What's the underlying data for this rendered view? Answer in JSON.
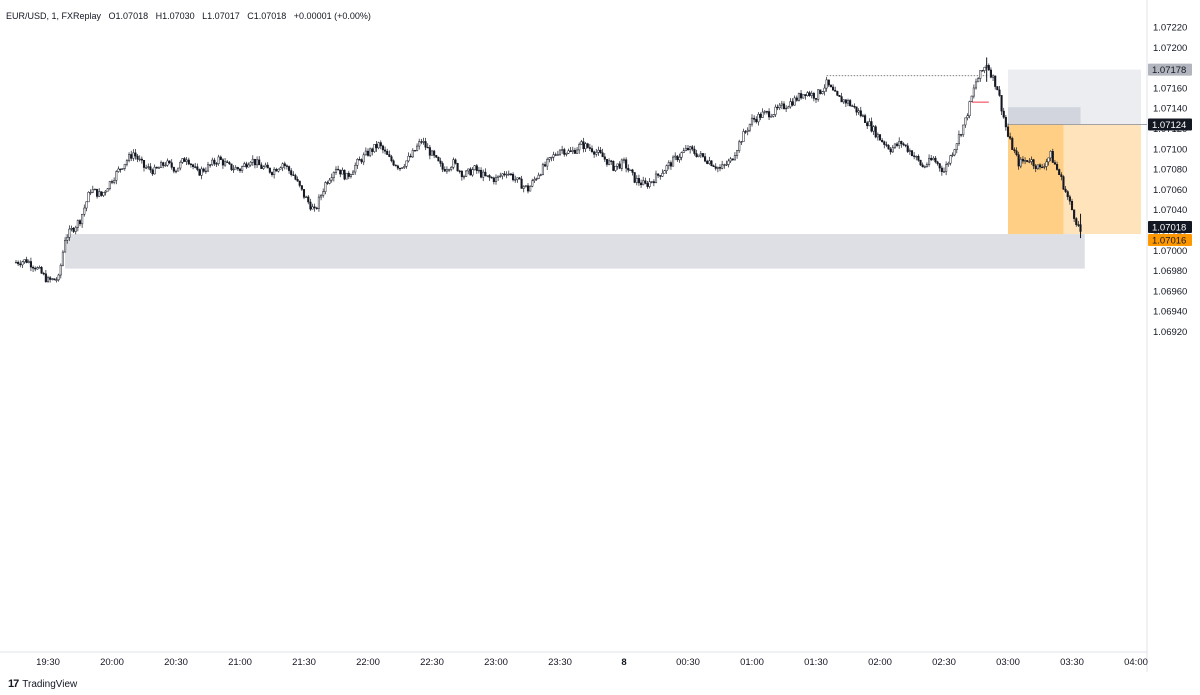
{
  "legend": {
    "symbol": "EUR/USD, 1, FXReplay",
    "open": "O1.07018",
    "high": "H1.07030",
    "low": "L1.07017",
    "close": "C1.07018",
    "change": "+0.00001 (+0.00%)"
  },
  "brand": {
    "text": "TradingView",
    "logo": "tradingview-logo-icon"
  },
  "colors": {
    "candle": "#131722",
    "gray_zone": "#d1d4dc",
    "light_zone": "#e9eaee",
    "orange_dark": "#ffcc80",
    "orange_light": "#ffe0b2",
    "orange_tag": "#ff9800",
    "gray_tag": "#b2b5be",
    "black_tag": "#131722",
    "red_mark": "#f23645"
  },
  "chart_data": {
    "type": "candlestick",
    "title": "",
    "ylim": [
      1.0691,
      1.0723
    ],
    "y_ticks": [
      "1.07220",
      "1.07200",
      "1.07180",
      "1.07160",
      "1.07140",
      "1.07120",
      "1.07100",
      "1.07080",
      "1.07060",
      "1.07040",
      "1.07020",
      "1.07000",
      "1.06980",
      "1.06960",
      "1.06940",
      "1.06920"
    ],
    "x_ticks": [
      "19:30",
      "20:00",
      "20:30",
      "21:00",
      "21:30",
      "22:00",
      "22:30",
      "23:00",
      "23:30",
      "8",
      "00:30",
      "01:00",
      "01:30",
      "02:00",
      "02:30",
      "03:00",
      "03:30",
      "04:00"
    ],
    "price_tags": [
      {
        "value": "1.07178",
        "style": "gray"
      },
      {
        "value": "1.07124",
        "style": "black"
      },
      {
        "value": "1.07018",
        "style": "black"
      },
      {
        "value": "1.07016",
        "style": "orange"
      }
    ],
    "zones": [
      {
        "name": "demand-zone",
        "x_from": "19:38",
        "x_to": "03:36",
        "y_from": 1.06982,
        "y_to": 1.07016
      },
      {
        "name": "short-target-zone",
        "x_from": "03:00",
        "x_to": "04:05",
        "y_from": 1.07124,
        "y_to": 1.07178
      },
      {
        "name": "supply-block",
        "x_from": "03:00",
        "x_to": "03:34",
        "y_from": 1.07124,
        "y_to": 1.07141
      },
      {
        "name": "short-position-zone",
        "x_from": "03:00",
        "x_to": "04:05",
        "y_from": 1.07016,
        "y_to": 1.07124
      }
    ],
    "price_path": [
      [
        "19:14",
        1.06988
      ],
      [
        "19:20",
        1.0699
      ],
      [
        "19:24",
        1.06984
      ],
      [
        "19:30",
        1.0697
      ],
      [
        "19:35",
        1.06972
      ],
      [
        "19:38",
        1.07012
      ],
      [
        "19:45",
        1.0703
      ],
      [
        "19:50",
        1.0706
      ],
      [
        "19:55",
        1.07054
      ],
      [
        "20:00",
        1.0707
      ],
      [
        "20:05",
        1.07084
      ],
      [
        "20:10",
        1.07096
      ],
      [
        "20:15",
        1.07082
      ],
      [
        "20:20",
        1.07078
      ],
      [
        "20:25",
        1.07086
      ],
      [
        "20:30",
        1.0708
      ],
      [
        "20:35",
        1.07092
      ],
      [
        "20:40",
        1.07076
      ],
      [
        "20:45",
        1.07082
      ],
      [
        "20:50",
        1.0709
      ],
      [
        "20:55",
        1.07082
      ],
      [
        "21:00",
        1.0708
      ],
      [
        "21:05",
        1.0709
      ],
      [
        "21:10",
        1.07082
      ],
      [
        "21:15",
        1.07078
      ],
      [
        "21:20",
        1.07086
      ],
      [
        "21:25",
        1.07074
      ],
      [
        "21:30",
        1.07054
      ],
      [
        "21:35",
        1.07038
      ],
      [
        "21:40",
        1.07066
      ],
      [
        "21:45",
        1.07082
      ],
      [
        "21:50",
        1.07072
      ],
      [
        "21:55",
        1.07086
      ],
      [
        "22:00",
        1.07096
      ],
      [
        "22:05",
        1.07104
      ],
      [
        "22:10",
        1.0709
      ],
      [
        "22:15",
        1.07082
      ],
      [
        "22:20",
        1.07092
      ],
      [
        "22:25",
        1.07108
      ],
      [
        "22:30",
        1.07094
      ],
      [
        "22:35",
        1.0708
      ],
      [
        "22:40",
        1.07086
      ],
      [
        "22:45",
        1.07074
      ],
      [
        "22:50",
        1.0708
      ],
      [
        "22:55",
        1.07072
      ],
      [
        "23:00",
        1.0707
      ],
      [
        "23:05",
        1.07078
      ],
      [
        "23:10",
        1.07068
      ],
      [
        "23:15",
        1.0706
      ],
      [
        "23:20",
        1.07076
      ],
      [
        "23:25",
        1.07088
      ],
      [
        "23:30",
        1.071
      ],
      [
        "23:35",
        1.07096
      ],
      [
        "23:40",
        1.07104
      ],
      [
        "23:45",
        1.071
      ],
      [
        "23:50",
        1.07092
      ],
      [
        "23:55",
        1.07082
      ],
      [
        "00:00",
        1.07086
      ],
      [
        "00:05",
        1.0707
      ],
      [
        "00:10",
        1.07064
      ],
      [
        "00:15",
        1.07072
      ],
      [
        "00:20",
        1.07082
      ],
      [
        "00:25",
        1.07092
      ],
      [
        "00:30",
        1.071
      ],
      [
        "00:35",
        1.07094
      ],
      [
        "00:40",
        1.07088
      ],
      [
        "00:45",
        1.0708
      ],
      [
        "00:50",
        1.07088
      ],
      [
        "00:55",
        1.0711
      ],
      [
        "01:00",
        1.07128
      ],
      [
        "01:05",
        1.07134
      ],
      [
        "01:10",
        1.07136
      ],
      [
        "01:15",
        1.07142
      ],
      [
        "01:20",
        1.07148
      ],
      [
        "01:25",
        1.07156
      ],
      [
        "01:30",
        1.07152
      ],
      [
        "01:35",
        1.07164
      ],
      [
        "01:40",
        1.0715
      ],
      [
        "01:45",
        1.07146
      ],
      [
        "01:50",
        1.07136
      ],
      [
        "01:55",
        1.07124
      ],
      [
        "02:00",
        1.0711
      ],
      [
        "02:05",
        1.071
      ],
      [
        "02:10",
        1.07106
      ],
      [
        "02:15",
        1.07096
      ],
      [
        "02:20",
        1.07082
      ],
      [
        "02:25",
        1.0709
      ],
      [
        "02:30",
        1.07078
      ],
      [
        "02:35",
        1.07102
      ],
      [
        "02:40",
        1.07128
      ],
      [
        "02:45",
        1.07166
      ],
      [
        "02:50",
        1.07184
      ],
      [
        "02:55",
        1.0716
      ],
      [
        "03:00",
        1.07112
      ],
      [
        "03:05",
        1.07086
      ],
      [
        "03:10",
        1.0709
      ],
      [
        "03:15",
        1.0708
      ],
      [
        "03:20",
        1.07094
      ],
      [
        "03:25",
        1.0707
      ],
      [
        "03:30",
        1.0704
      ],
      [
        "03:34",
        1.07018
      ]
    ]
  }
}
